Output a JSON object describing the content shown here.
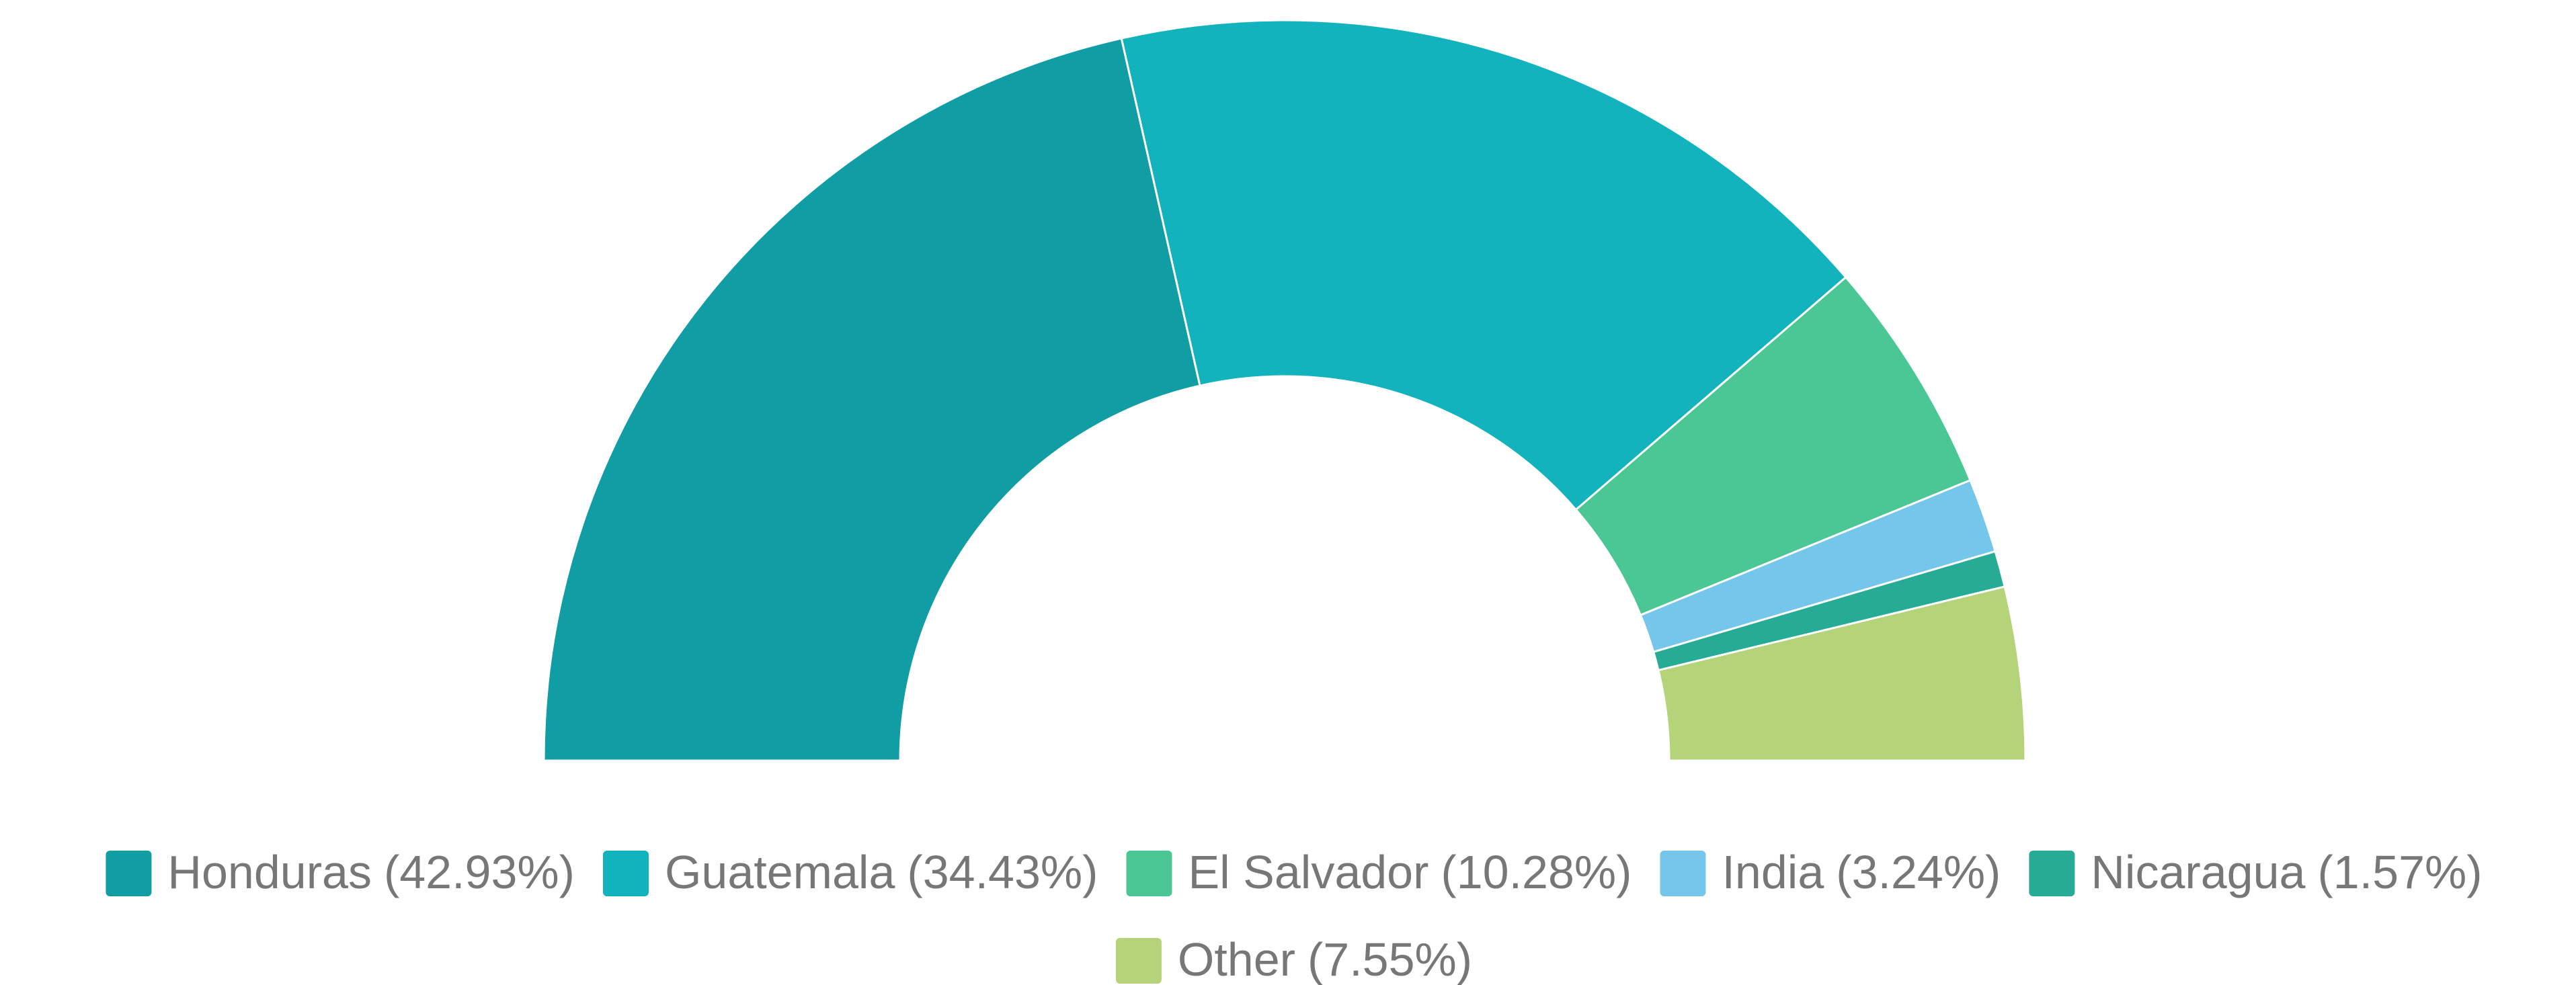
{
  "chart_data": {
    "type": "pie",
    "donut": true,
    "half": true,
    "categories": [
      "Honduras",
      "Guatemala",
      "El Salvador",
      "India",
      "Nicaragua",
      "Other"
    ],
    "values": [
      42.93,
      34.43,
      10.28,
      3.24,
      1.57,
      7.55
    ],
    "value_labels": [
      "(42.93%)",
      "(34.43%)",
      "(10.28%)",
      "(3.24%)",
      "(1.57%)",
      "(7.55%)"
    ],
    "colors": [
      "#109da4",
      "#12b3bd",
      "#4bc796",
      "#74c6ea",
      "#26ab95",
      "#b5d47a"
    ],
    "legend": "bottom"
  }
}
